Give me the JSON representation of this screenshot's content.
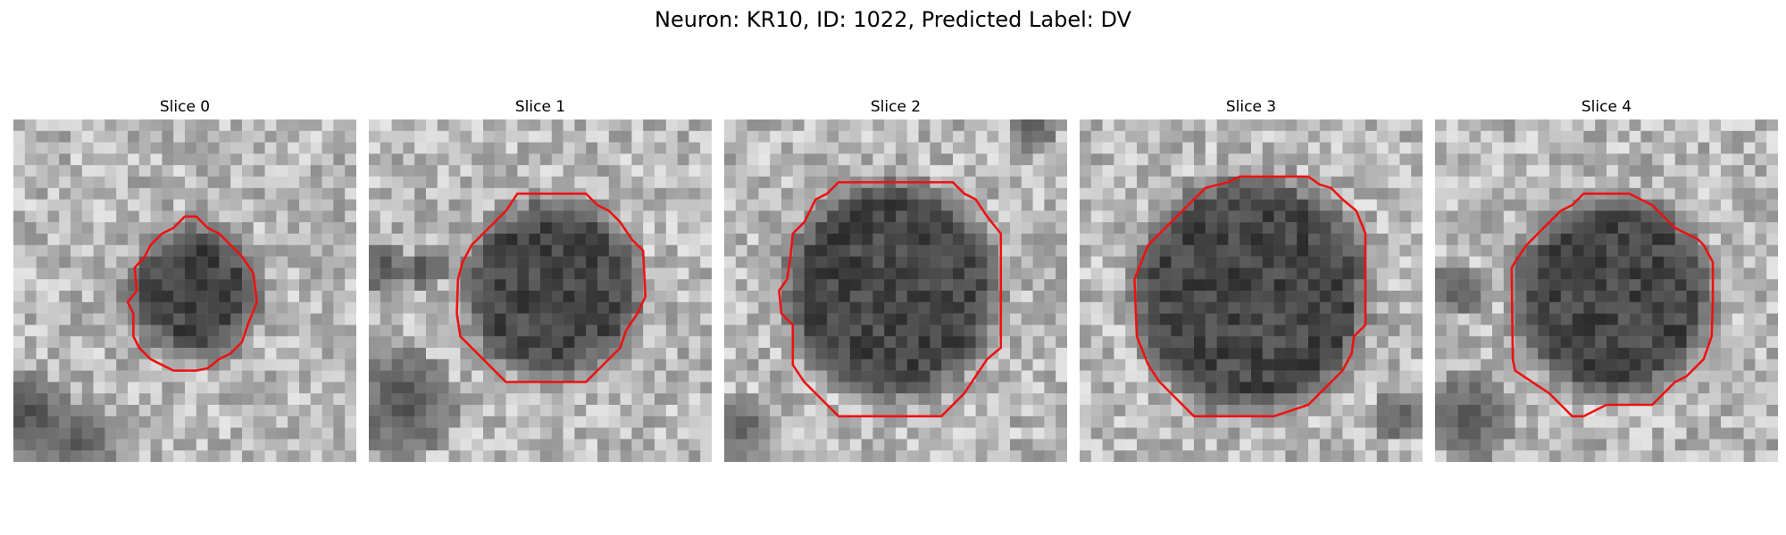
{
  "figure": {
    "title": "Neuron: KR10, ID: 1022, Predicted Label: DV",
    "contour_color": "#ee1111"
  },
  "slices": [
    {
      "label": "Slice 0"
    },
    {
      "label": "Slice 1"
    },
    {
      "label": "Slice 2"
    },
    {
      "label": "Slice 3"
    },
    {
      "label": "Slice 4"
    }
  ]
}
